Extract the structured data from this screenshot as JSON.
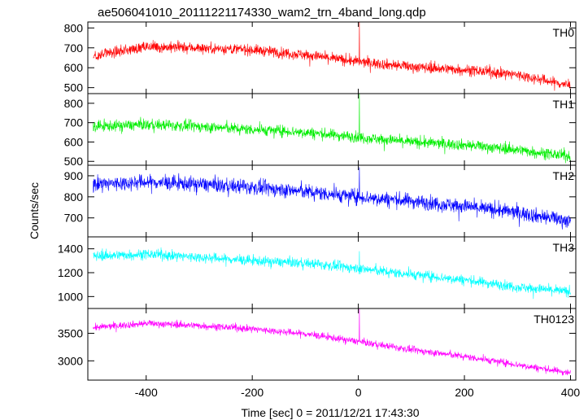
{
  "chart_data": {
    "type": "line",
    "title": "ae506041010_20111221174330_wam2_trn_4band_long.qdp",
    "xlabel": "Time [sec] 0 = 2011/12/21 17:43:30",
    "ylabel": "Counts/sec",
    "xlim": [
      -510,
      410
    ],
    "xticks": [
      -400,
      -200,
      0,
      200,
      400
    ],
    "grid": false,
    "panels": [
      {
        "name": "TH0",
        "color": "#ff0000",
        "ylim": [
          470,
          830
        ],
        "yticks": [
          500,
          600,
          700,
          800
        ],
        "noise": 32,
        "trend": [
          [
            -500,
            660
          ],
          [
            -400,
            705
          ],
          [
            -300,
            700
          ],
          [
            -200,
            690
          ],
          [
            -100,
            665
          ],
          [
            0,
            630
          ],
          [
            100,
            605
          ],
          [
            200,
            590
          ],
          [
            300,
            565
          ],
          [
            400,
            510
          ]
        ],
        "spike": {
          "x": 2,
          "y": 830
        }
      },
      {
        "name": "TH1",
        "color": "#00ee00",
        "ylim": [
          480,
          850
        ],
        "yticks": [
          500,
          600,
          700,
          800
        ],
        "noise": 34,
        "trend": [
          [
            -500,
            680
          ],
          [
            -400,
            690
          ],
          [
            -300,
            680
          ],
          [
            -200,
            665
          ],
          [
            -100,
            650
          ],
          [
            0,
            625
          ],
          [
            100,
            600
          ],
          [
            200,
            585
          ],
          [
            300,
            560
          ],
          [
            400,
            525
          ]
        ],
        "spike": {
          "x": 2,
          "y": 850
        }
      },
      {
        "name": "TH2",
        "color": "#0000ff",
        "ylim": [
          610,
          950
        ],
        "yticks": [
          700,
          800,
          900
        ],
        "noise": 42,
        "trend": [
          [
            -500,
            860
          ],
          [
            -400,
            870
          ],
          [
            -300,
            860
          ],
          [
            -200,
            845
          ],
          [
            -100,
            825
          ],
          [
            0,
            800
          ],
          [
            100,
            780
          ],
          [
            200,
            755
          ],
          [
            300,
            725
          ],
          [
            400,
            685
          ]
        ],
        "spike": {
          "x": 2,
          "y": 940
        }
      },
      {
        "name": "TH3",
        "color": "#00ffff",
        "ylim": [
          900,
          1500
        ],
        "yticks": [
          1000,
          1200,
          1400
        ],
        "noise": 50,
        "trend": [
          [
            -500,
            1340
          ],
          [
            -400,
            1355
          ],
          [
            -300,
            1330
          ],
          [
            -200,
            1300
          ],
          [
            -100,
            1280
          ],
          [
            0,
            1235
          ],
          [
            100,
            1185
          ],
          [
            200,
            1140
          ],
          [
            300,
            1080
          ],
          [
            400,
            1040
          ]
        ],
        "spike": {
          "x": 2,
          "y": 1380
        }
      },
      {
        "name": "TH0123",
        "color": "#ff00ff",
        "ylim": [
          2650,
          3950
        ],
        "yticks": [
          3000,
          3500
        ],
        "noise": 75,
        "trend": [
          [
            -500,
            3600
          ],
          [
            -400,
            3680
          ],
          [
            -300,
            3640
          ],
          [
            -200,
            3580
          ],
          [
            -100,
            3490
          ],
          [
            0,
            3350
          ],
          [
            100,
            3200
          ],
          [
            200,
            3080
          ],
          [
            300,
            2930
          ],
          [
            400,
            2780
          ]
        ],
        "spike": {
          "x": 2,
          "y": 3950
        }
      }
    ]
  }
}
